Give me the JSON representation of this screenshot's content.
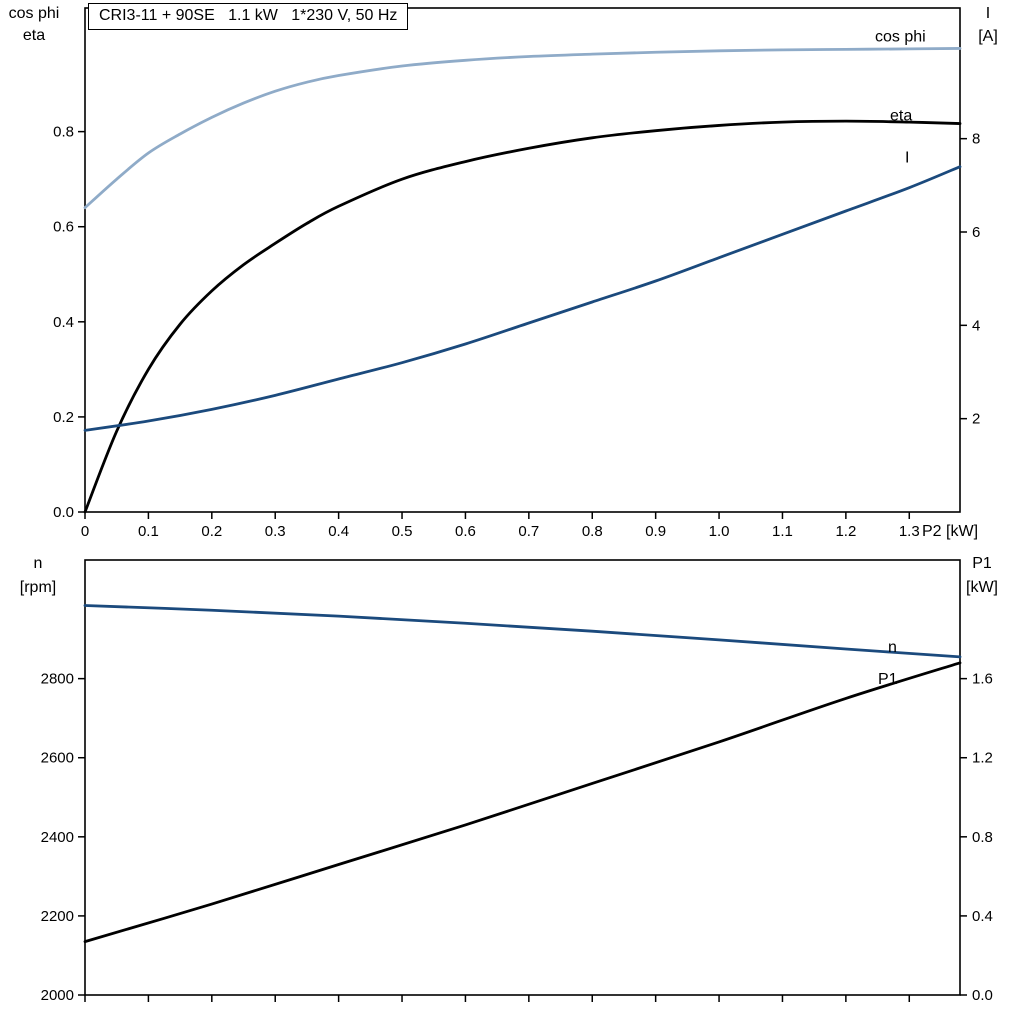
{
  "header": {
    "title": "CRI3-11 + 90SE   1.1 kW   1*230 V, 50 Hz"
  },
  "axis_corner_labels": {
    "top_left_1": "cos phi",
    "top_left_2": "eta",
    "top_right_1": "I",
    "top_right_2": "[A]",
    "bottom_left_1": "n",
    "bottom_left_2": "[rpm]",
    "bottom_right_1": "P1",
    "bottom_right_2": "[kW]"
  },
  "colors": {
    "light_blue": "#8fabc8",
    "light_blue_label": "#5d88b5",
    "dark_blue": "#1b4a7d",
    "black": "#000000"
  },
  "chart_data": [
    {
      "type": "line",
      "title": "CRI3-11 + 90SE   1.1 kW   1*230 V, 50 Hz",
      "grid": false,
      "x_axis": {
        "label": "P2 [kW]",
        "range": [
          0,
          1.38
        ],
        "ticks": [
          0,
          0.1,
          0.2,
          0.3,
          0.4,
          0.5,
          0.6,
          0.7,
          0.8,
          0.9,
          1.0,
          1.1,
          1.2,
          1.3
        ],
        "tick_labels": [
          "0",
          "0.1",
          "0.2",
          "0.3",
          "0.4",
          "0.5",
          "0.6",
          "0.7",
          "0.8",
          "0.9",
          "1.0",
          "1.1",
          "1.2",
          "1.3"
        ]
      },
      "y_left": {
        "labels": [
          "cos phi",
          "eta"
        ],
        "range": [
          0,
          1.06
        ],
        "ticks": [
          0.0,
          0.2,
          0.4,
          0.6,
          0.8
        ],
        "tick_labels": [
          "0.0",
          "0.2",
          "0.4",
          "0.6",
          "0.8"
        ]
      },
      "y_right": {
        "labels": [
          "I",
          "[A]"
        ],
        "range": [
          0,
          10.8
        ],
        "ticks": [
          2,
          4,
          6,
          8
        ],
        "tick_labels": [
          "2",
          "4",
          "6",
          "8"
        ]
      },
      "series": [
        {
          "name": "cos phi",
          "axis": "left",
          "color": "#8fabc8",
          "label_color": "#5d88b5",
          "label_offset": [
            -85,
            -7
          ],
          "points": [
            [
              0,
              0.64
            ],
            [
              0.05,
              0.7
            ],
            [
              0.1,
              0.755
            ],
            [
              0.15,
              0.795
            ],
            [
              0.2,
              0.83
            ],
            [
              0.25,
              0.86
            ],
            [
              0.3,
              0.885
            ],
            [
              0.35,
              0.904
            ],
            [
              0.4,
              0.918
            ],
            [
              0.5,
              0.938
            ],
            [
              0.6,
              0.95
            ],
            [
              0.7,
              0.958
            ],
            [
              0.8,
              0.963
            ],
            [
              0.9,
              0.967
            ],
            [
              1.0,
              0.97
            ],
            [
              1.1,
              0.972
            ],
            [
              1.2,
              0.973
            ],
            [
              1.3,
              0.974
            ],
            [
              1.38,
              0.975
            ]
          ]
        },
        {
          "name": "eta",
          "axis": "left",
          "color": "#000000",
          "label_color": "#000000",
          "label_offset": [
            -70,
            -3
          ],
          "points": [
            [
              0,
              0.0
            ],
            [
              0.05,
              0.17
            ],
            [
              0.1,
              0.3
            ],
            [
              0.15,
              0.395
            ],
            [
              0.2,
              0.465
            ],
            [
              0.25,
              0.52
            ],
            [
              0.3,
              0.565
            ],
            [
              0.35,
              0.607
            ],
            [
              0.4,
              0.643
            ],
            [
              0.5,
              0.7
            ],
            [
              0.6,
              0.737
            ],
            [
              0.7,
              0.765
            ],
            [
              0.8,
              0.787
            ],
            [
              0.9,
              0.802
            ],
            [
              1.0,
              0.813
            ],
            [
              1.1,
              0.82
            ],
            [
              1.2,
              0.822
            ],
            [
              1.3,
              0.82
            ],
            [
              1.38,
              0.817
            ]
          ]
        },
        {
          "name": "I",
          "axis": "right",
          "color": "#1b4a7d",
          "label_color": "#1b4a7d",
          "label_offset": [
            -55,
            -4
          ],
          "points": [
            [
              0,
              1.75
            ],
            [
              0.1,
              1.95
            ],
            [
              0.2,
              2.2
            ],
            [
              0.3,
              2.5
            ],
            [
              0.4,
              2.85
            ],
            [
              0.5,
              3.2
            ],
            [
              0.6,
              3.6
            ],
            [
              0.7,
              4.05
            ],
            [
              0.8,
              4.5
            ],
            [
              0.9,
              4.95
            ],
            [
              1.0,
              5.45
            ],
            [
              1.1,
              5.95
            ],
            [
              1.2,
              6.45
            ],
            [
              1.3,
              6.95
            ],
            [
              1.38,
              7.4
            ]
          ]
        }
      ]
    },
    {
      "type": "line",
      "title": "",
      "grid": false,
      "x_axis": {
        "label": "",
        "range": [
          0,
          1.38
        ],
        "ticks": [
          0,
          0.1,
          0.2,
          0.3,
          0.4,
          0.5,
          0.6,
          0.7,
          0.8,
          0.9,
          1.0,
          1.1,
          1.2,
          1.3
        ],
        "tick_labels": []
      },
      "y_left": {
        "labels": [
          "n",
          "[rpm]"
        ],
        "range": [
          2000,
          3100
        ],
        "ticks": [
          2000,
          2200,
          2400,
          2600,
          2800
        ],
        "tick_labels": [
          "2000",
          "2200",
          "2400",
          "2600",
          "2800"
        ]
      },
      "y_right": {
        "labels": [
          "P1",
          "[kW]"
        ],
        "range": [
          0,
          2.2
        ],
        "ticks": [
          0.0,
          0.4,
          0.8,
          1.2,
          1.6
        ],
        "tick_labels": [
          "0.0",
          "0.4",
          "0.8",
          "1.2",
          "1.6"
        ]
      },
      "series": [
        {
          "name": "n",
          "axis": "left",
          "color": "#1b4a7d",
          "label_color": "#1b4a7d",
          "label_offset": [
            -72,
            -5
          ],
          "points": [
            [
              0,
              2985
            ],
            [
              0.2,
              2973
            ],
            [
              0.4,
              2958
            ],
            [
              0.6,
              2940
            ],
            [
              0.8,
              2920
            ],
            [
              1.0,
              2898
            ],
            [
              1.2,
              2875
            ],
            [
              1.38,
              2855
            ]
          ]
        },
        {
          "name": "P1",
          "axis": "right",
          "color": "#000000",
          "label_color": "#000000",
          "label_offset": [
            -82,
            21
          ],
          "points": [
            [
              0,
              0.27
            ],
            [
              0.2,
              0.46
            ],
            [
              0.4,
              0.66
            ],
            [
              0.6,
              0.86
            ],
            [
              0.8,
              1.07
            ],
            [
              1.0,
              1.28
            ],
            [
              1.2,
              1.5
            ],
            [
              1.38,
              1.68
            ]
          ]
        }
      ]
    }
  ]
}
